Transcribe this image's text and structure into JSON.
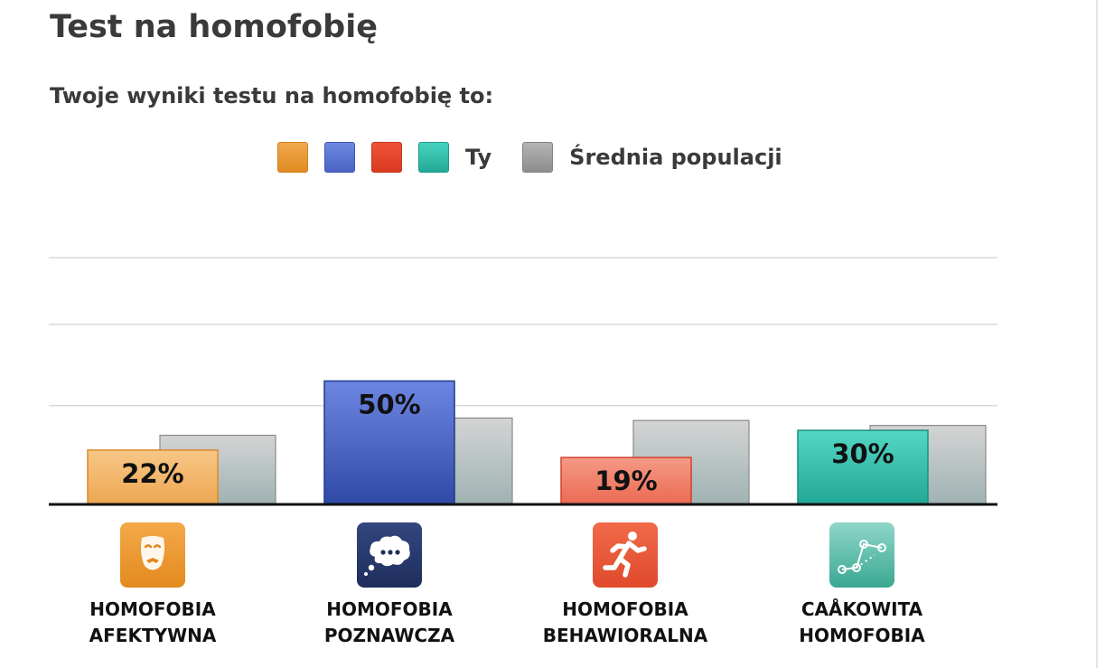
{
  "page": {
    "title": "Test na homofobię",
    "subtitle": "Twoje wyniki testu na homofobię to:"
  },
  "legend": {
    "you_label": "Ty",
    "average_label": "Średnia populacji",
    "you_colors": [
      "#ee9f3e",
      "#5b75d3",
      "#e14a33",
      "#3fc8b5"
    ],
    "average_color": "#a7a7a7"
  },
  "chart_data": {
    "type": "bar",
    "categories": [
      [
        "HOMOFOBIA",
        "AFEKTYWNA"
      ],
      [
        "HOMOFOBIA",
        "POZNAWCZA"
      ],
      [
        "HOMOFOBIA",
        "BEHAWIORALNA"
      ],
      [
        "CAÅKOWITA",
        "HOMOFOBIA"
      ]
    ],
    "series": [
      {
        "name": "Ty",
        "values": [
          22,
          50,
          19,
          30
        ],
        "labels": [
          "22%",
          "50%",
          "19%",
          "30%"
        ],
        "colors": [
          {
            "top": "#f7c787",
            "bottom": "#eea751",
            "stroke": "#d98a2c"
          },
          {
            "top": "#6d86e2",
            "bottom": "#2f4aa6",
            "stroke": "#1f3a8a"
          },
          {
            "top": "#f49a85",
            "bottom": "#ec6a53",
            "stroke": "#d2412e"
          },
          {
            "top": "#54d7c5",
            "bottom": "#23a796",
            "stroke": "#1b8f80"
          }
        ]
      },
      {
        "name": "Średnia populacji",
        "values": [
          28,
          35,
          34,
          32
        ],
        "colors": {
          "top": "#d4d4d4",
          "bottom": "#9fb2b2",
          "stroke": "#8a8a8a"
        }
      }
    ],
    "ylim": [
      0,
      100
    ],
    "gridlines": [
      40,
      73,
      100
    ],
    "grid": true,
    "legend_position": "top-center"
  },
  "icons": [
    {
      "name": "mask-icon",
      "color": "#ef9b33"
    },
    {
      "name": "thought-bubble-icon",
      "color": "#283a73"
    },
    {
      "name": "running-person-icon",
      "color": "#ec5a3e"
    },
    {
      "name": "connected-dots-icon",
      "color": "#35b49e"
    }
  ]
}
